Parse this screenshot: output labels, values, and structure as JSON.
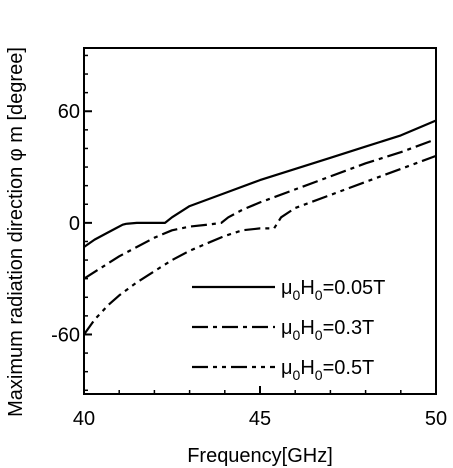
{
  "chart_data": {
    "type": "line",
    "xlabel": "Frequency[GHz]",
    "ylabel": "Maximum radiation direction φ m [degree]",
    "xlim": [
      40,
      50
    ],
    "ylim": [
      -92,
      94
    ],
    "xticks": [
      40,
      45,
      50
    ],
    "xtick_labels": [
      "40",
      "45",
      "50"
    ],
    "yticks": [
      -60,
      0,
      60
    ],
    "ytick_labels": [
      "-60",
      "0",
      "60"
    ],
    "grid": false,
    "legend_position": "bottom-right",
    "series": [
      {
        "name": "μ0H0=0.05T",
        "legend": {
          "mu": "μ",
          "sub1": "0",
          "h": "H",
          "sub2": "0",
          "value": "=0.05T"
        },
        "dash": "solid",
        "x": [
          40,
          40.3,
          40.6,
          40.9,
          41.1,
          41.2,
          41.5,
          42.0,
          42.3,
          42.5,
          43,
          44,
          45,
          46,
          47,
          48,
          49,
          50
        ],
        "y": [
          -13,
          -9,
          -6,
          -3,
          -1,
          -0.5,
          0,
          0,
          0,
          3,
          9,
          16,
          23,
          29,
          35,
          41,
          47,
          55
        ]
      },
      {
        "name": "μ0H0=0.3T",
        "legend": {
          "mu": "μ",
          "sub1": "0",
          "h": "H",
          "sub2": "0",
          "value": "=0.3T"
        },
        "dash": "dashdot",
        "x": [
          40,
          40.5,
          41,
          41.5,
          42,
          42.5,
          43,
          43.5,
          43.9,
          44.1,
          44.5,
          45,
          46,
          47,
          48,
          49,
          50
        ],
        "y": [
          -30,
          -24,
          -18,
          -13,
          -8,
          -4,
          -2,
          -1,
          0,
          3,
          7,
          11,
          18,
          25,
          32,
          38,
          45
        ]
      },
      {
        "name": "μ0H0=0.5T",
        "legend": {
          "mu": "μ",
          "sub1": "0",
          "h": "H",
          "sub2": "0",
          "value": "=0.5T"
        },
        "dash": "dashdotdot",
        "x": [
          40,
          40.3,
          40.7,
          41,
          41.5,
          42,
          42.5,
          43,
          43.5,
          44,
          44.5,
          45,
          45.4,
          45.6,
          46,
          47,
          48,
          49,
          50
        ],
        "y": [
          -60,
          -52,
          -44,
          -39,
          -32,
          -26,
          -20,
          -15,
          -11,
          -7,
          -4,
          -3,
          -3,
          3,
          8,
          15,
          22,
          29,
          36
        ]
      }
    ]
  }
}
